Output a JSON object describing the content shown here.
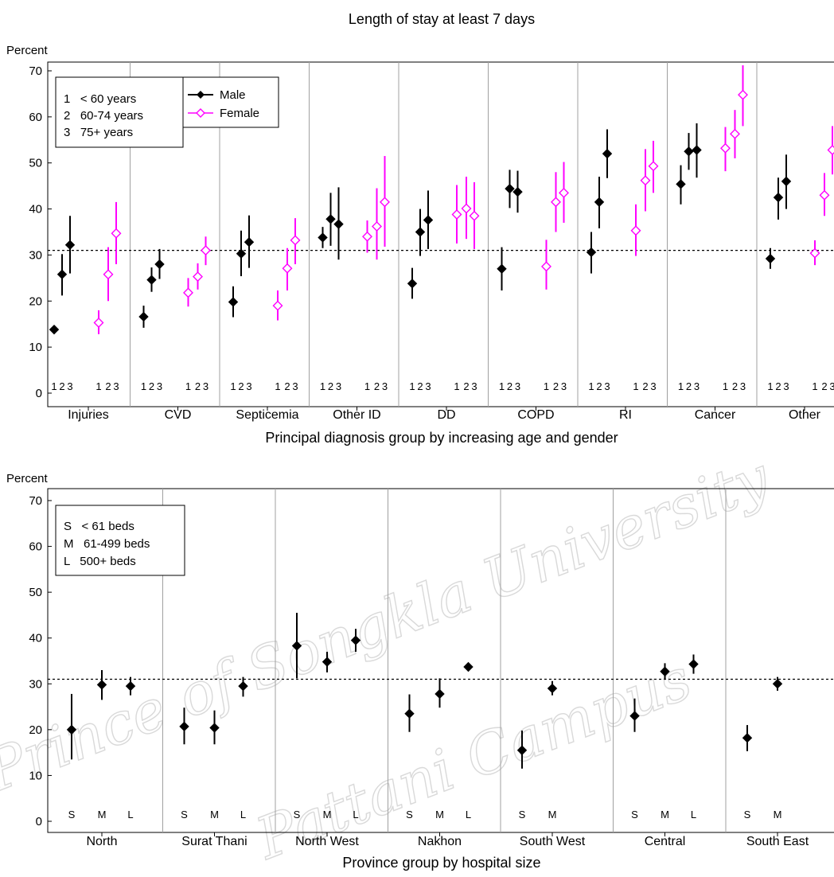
{
  "page": {
    "title": "Length of stay at least 7 days"
  },
  "watermark": {
    "line1": "Prince of Songkla University",
    "line2": "Pattani Campus"
  },
  "colors": {
    "male": "#000000",
    "female": "#ff00ff",
    "divider": "#a0a0a0",
    "reference": "#000000"
  },
  "chart_data": [
    {
      "type": "scatter",
      "subtype": "point-with-error-bars",
      "title": "Length of stay at least 7 days",
      "ylabel": "Percent",
      "xlabel": "Principal diagnosis group by increasing age and gender",
      "ylim": [
        0,
        70
      ],
      "yticks": [
        0,
        10,
        20,
        30,
        40,
        50,
        60,
        70
      ],
      "reference_line": 31,
      "categories": [
        "Injuries",
        "CVD",
        "Septicemia",
        "Other ID",
        "DD",
        "COPD",
        "RI",
        "Cancer",
        "Other"
      ],
      "sub_labels": [
        "1",
        "2",
        "3"
      ],
      "legend_codes": [
        "1   < 60 years",
        "2   60-74 years",
        "3   75+ years"
      ],
      "series": [
        {
          "name": "Male",
          "color": "#000000",
          "marker": "filled-diamond",
          "groups": [
            [
              {
                "y": 13.8,
                "lo": 13.2,
                "hi": 14.4
              },
              {
                "y": 25.8,
                "lo": 21.2,
                "hi": 30.2
              },
              {
                "y": 32.2,
                "lo": 26.0,
                "hi": 38.5
              }
            ],
            [
              {
                "y": 16.6,
                "lo": 14.2,
                "hi": 19.0
              },
              {
                "y": 24.6,
                "lo": 22.0,
                "hi": 27.3
              },
              {
                "y": 28.0,
                "lo": 24.8,
                "hi": 31.3
              }
            ],
            [
              {
                "y": 19.8,
                "lo": 16.5,
                "hi": 23.2
              },
              {
                "y": 30.3,
                "lo": 25.4,
                "hi": 35.3
              },
              {
                "y": 32.8,
                "lo": 27.2,
                "hi": 38.6
              }
            ],
            [
              {
                "y": 33.8,
                "lo": 31.5,
                "hi": 36.1
              },
              {
                "y": 37.8,
                "lo": 32.0,
                "hi": 43.5
              },
              {
                "y": 36.7,
                "lo": 29.0,
                "hi": 44.7
              }
            ],
            [
              {
                "y": 23.8,
                "lo": 20.5,
                "hi": 27.2
              },
              {
                "y": 35.0,
                "lo": 29.8,
                "hi": 40.0
              },
              {
                "y": 37.6,
                "lo": 31.3,
                "hi": 44.0
              }
            ],
            [
              {
                "y": 27.0,
                "lo": 22.3,
                "hi": 31.7
              },
              {
                "y": 44.4,
                "lo": 40.2,
                "hi": 48.5
              },
              {
                "y": 43.7,
                "lo": 39.2,
                "hi": 48.3
              }
            ],
            [
              {
                "y": 30.6,
                "lo": 26.0,
                "hi": 35.0
              },
              {
                "y": 41.5,
                "lo": 35.8,
                "hi": 47.0
              },
              {
                "y": 52.0,
                "lo": 46.7,
                "hi": 57.3
              }
            ],
            [
              {
                "y": 45.4,
                "lo": 41.0,
                "hi": 49.5
              },
              {
                "y": 52.5,
                "lo": 48.5,
                "hi": 56.5
              },
              {
                "y": 52.8,
                "lo": 46.8,
                "hi": 58.6
              }
            ],
            [
              {
                "y": 29.2,
                "lo": 27.0,
                "hi": 31.5
              },
              {
                "y": 42.5,
                "lo": 37.7,
                "hi": 46.8
              },
              {
                "y": 46.0,
                "lo": 40.0,
                "hi": 51.8
              }
            ]
          ]
        },
        {
          "name": "Female",
          "color": "#ff00ff",
          "marker": "open-diamond",
          "groups": [
            [
              {
                "y": 15.3,
                "lo": 12.8,
                "hi": 18.0
              },
              {
                "y": 25.8,
                "lo": 20.0,
                "hi": 31.7
              },
              {
                "y": 34.7,
                "lo": 28.0,
                "hi": 41.5
              }
            ],
            [
              {
                "y": 21.8,
                "lo": 18.8,
                "hi": 25.0
              },
              {
                "y": 25.3,
                "lo": 22.5,
                "hi": 28.2
              },
              {
                "y": 31.0,
                "lo": 27.8,
                "hi": 34.0
              }
            ],
            [
              {
                "y": 19.0,
                "lo": 15.8,
                "hi": 22.3
              },
              {
                "y": 27.1,
                "lo": 22.3,
                "hi": 31.5
              },
              {
                "y": 33.2,
                "lo": 28.0,
                "hi": 38.0
              }
            ],
            [
              {
                "y": 34.0,
                "lo": 30.5,
                "hi": 37.5
              },
              {
                "y": 36.2,
                "lo": 29.0,
                "hi": 44.5
              },
              {
                "y": 41.5,
                "lo": 31.8,
                "hi": 51.5
              }
            ],
            [
              {
                "y": 38.8,
                "lo": 32.5,
                "hi": 45.2
              },
              {
                "y": 40.1,
                "lo": 33.5,
                "hi": 47.0
              },
              {
                "y": 38.5,
                "lo": 31.3,
                "hi": 45.8
              }
            ],
            [
              {
                "y": 27.5,
                "lo": 22.5,
                "hi": 33.3
              },
              {
                "y": 41.5,
                "lo": 35.0,
                "hi": 48.0
              },
              {
                "y": 43.5,
                "lo": 37.0,
                "hi": 50.2
              }
            ],
            [
              {
                "y": 35.3,
                "lo": 29.8,
                "hi": 41.0
              },
              {
                "y": 46.2,
                "lo": 39.5,
                "hi": 53.0
              },
              {
                "y": 49.3,
                "lo": 43.5,
                "hi": 54.8
              }
            ],
            [
              {
                "y": 53.2,
                "lo": 48.2,
                "hi": 57.8
              },
              {
                "y": 56.3,
                "lo": 51.0,
                "hi": 61.5
              },
              {
                "y": 64.8,
                "lo": 58.0,
                "hi": 71.2
              }
            ],
            [
              {
                "y": 30.4,
                "lo": 27.8,
                "hi": 33.2
              },
              {
                "y": 43.0,
                "lo": 38.5,
                "hi": 47.8
              },
              {
                "y": 52.8,
                "lo": 47.5,
                "hi": 58.0
              }
            ]
          ]
        }
      ]
    },
    {
      "type": "scatter",
      "subtype": "point-with-error-bars",
      "ylabel": "Percent",
      "xlabel": "Province group by hospital size",
      "ylim": [
        0,
        70
      ],
      "yticks": [
        0,
        10,
        20,
        30,
        40,
        50,
        60,
        70
      ],
      "reference_line": 31,
      "categories": [
        "North",
        "Surat Thani",
        "North West",
        "Nakhon",
        "South West",
        "Central",
        "South East"
      ],
      "sub_labels": [
        "S",
        "M",
        "L"
      ],
      "legend_codes": [
        "S   < 61 beds",
        "M   61-499 beds",
        "L   500+ beds"
      ],
      "groups": [
        [
          {
            "y": 20.0,
            "lo": 13.5,
            "hi": 27.8
          },
          {
            "y": 29.8,
            "lo": 26.5,
            "hi": 33.0
          },
          {
            "y": 29.5,
            "lo": 27.5,
            "hi": 31.5
          }
        ],
        [
          {
            "y": 20.7,
            "lo": 16.8,
            "hi": 24.8
          },
          {
            "y": 20.4,
            "lo": 16.8,
            "hi": 24.2
          },
          {
            "y": 29.5,
            "lo": 27.2,
            "hi": 31.5
          }
        ],
        [
          {
            "y": 38.3,
            "lo": 31.2,
            "hi": 45.5
          },
          {
            "y": 34.8,
            "lo": 32.5,
            "hi": 37.0
          },
          {
            "y": 39.5,
            "lo": 37.0,
            "hi": 42.0
          }
        ],
        [
          {
            "y": 23.5,
            "lo": 19.5,
            "hi": 27.7
          },
          {
            "y": 27.8,
            "lo": 24.8,
            "hi": 31.2
          },
          {
            "y": 33.7,
            "lo": 33.2,
            "hi": 34.2
          }
        ],
        [
          {
            "y": 15.5,
            "lo": 11.5,
            "hi": 19.8
          },
          {
            "y": 29.0,
            "lo": 27.5,
            "hi": 30.6
          },
          null
        ],
        [
          {
            "y": 23.0,
            "lo": 19.5,
            "hi": 26.8
          },
          {
            "y": 32.7,
            "lo": 31.0,
            "hi": 34.5
          },
          {
            "y": 34.3,
            "lo": 32.2,
            "hi": 36.4
          }
        ],
        [
          {
            "y": 18.2,
            "lo": 15.3,
            "hi": 21.0
          },
          {
            "y": 30.0,
            "lo": 28.5,
            "hi": 31.5
          },
          null
        ]
      ]
    }
  ],
  "legends": {
    "age": [
      "1   < 60 years",
      "2   60-74 years",
      "3   75+ years"
    ],
    "gender": [
      "Male",
      "Female"
    ],
    "beds": [
      "S   < 61 beds",
      "M   61-499 beds",
      "L   500+ beds"
    ]
  }
}
